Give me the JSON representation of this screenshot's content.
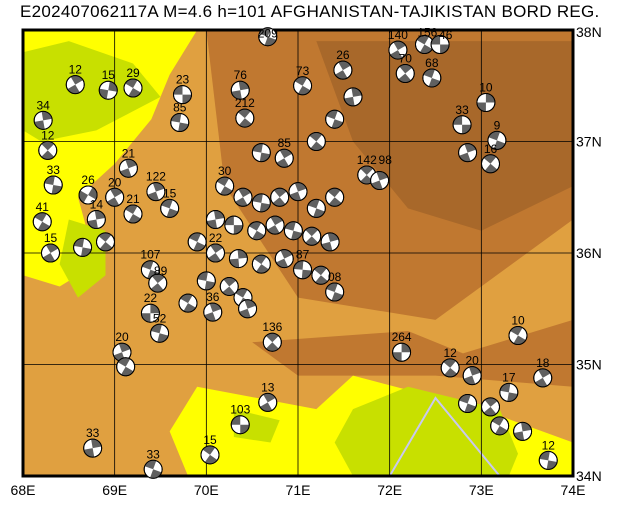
{
  "title": "E202407062117A M=4.6 h=101 AFGHANISTAN-TAJIKISTAN BORD REG.",
  "map": {
    "lon_range": [
      68,
      74
    ],
    "lat_range": [
      34,
      38
    ],
    "lon_ticks": [
      "68E",
      "69E",
      "70E",
      "71E",
      "72E",
      "73E",
      "74E"
    ],
    "lat_ticks": [
      "38N",
      "37N",
      "36N",
      "35N",
      "34N"
    ],
    "grid": true,
    "colors": {
      "lowland": "#ffff00",
      "plain": "#c8e000",
      "hills": "#e0a040",
      "mountain": "#c07830",
      "high": "#a8682a",
      "border": "#c8c8f0",
      "compression": "#606060"
    }
  },
  "events": [
    {
      "lon": 70.67,
      "lat": 37.94,
      "depth": "209",
      "strike": 20
    },
    {
      "lon": 68.57,
      "lat": 37.51,
      "depth": "12",
      "strike": 60
    },
    {
      "lon": 68.93,
      "lat": 37.46,
      "depth": "15",
      "strike": 100
    },
    {
      "lon": 69.2,
      "lat": 37.48,
      "depth": "29",
      "strike": 30
    },
    {
      "lon": 69.74,
      "lat": 37.42,
      "depth": "23",
      "strike": 0
    },
    {
      "lon": 68.22,
      "lat": 37.19,
      "depth": "34",
      "strike": 80
    },
    {
      "lon": 68.27,
      "lat": 36.92,
      "depth": "12",
      "strike": 45
    },
    {
      "lon": 68.33,
      "lat": 36.61,
      "depth": "33",
      "strike": 10
    },
    {
      "lon": 69.15,
      "lat": 36.76,
      "depth": "21",
      "strike": 70
    },
    {
      "lon": 68.71,
      "lat": 36.52,
      "depth": "26",
      "strike": 120
    },
    {
      "lon": 68.21,
      "lat": 36.28,
      "depth": "41",
      "strike": 30
    },
    {
      "lon": 68.3,
      "lat": 36.0,
      "depth": "15",
      "strike": 60
    },
    {
      "lon": 68.65,
      "lat": 36.05,
      "depth": "",
      "strike": 10
    },
    {
      "lon": 68.9,
      "lat": 36.1,
      "depth": "",
      "strike": 40
    },
    {
      "lon": 68.8,
      "lat": 36.3,
      "depth": "14",
      "strike": 80
    },
    {
      "lon": 69.39,
      "lat": 35.85,
      "depth": "107",
      "strike": 20
    },
    {
      "lon": 69.47,
      "lat": 35.73,
      "depth": "89",
      "strike": 50
    },
    {
      "lon": 69.39,
      "lat": 35.46,
      "depth": "22",
      "strike": 90
    },
    {
      "lon": 69.49,
      "lat": 35.28,
      "depth": "52",
      "strike": 15
    },
    {
      "lon": 70.72,
      "lat": 35.2,
      "depth": "136",
      "strike": 45
    },
    {
      "lon": 69.08,
      "lat": 35.11,
      "depth": "20",
      "strike": 70
    },
    {
      "lon": 69.12,
      "lat": 34.98,
      "depth": "",
      "strike": 30
    },
    {
      "lon": 70.67,
      "lat": 34.66,
      "depth": "13",
      "strike": 60
    },
    {
      "lon": 70.37,
      "lat": 34.46,
      "depth": "103",
      "strike": 0
    },
    {
      "lon": 70.04,
      "lat": 34.19,
      "depth": "15",
      "strike": 35
    },
    {
      "lon": 68.76,
      "lat": 34.25,
      "depth": "33",
      "strike": 80
    },
    {
      "lon": 69.42,
      "lat": 34.06,
      "depth": "33",
      "strike": 20
    },
    {
      "lon": 72.13,
      "lat": 35.11,
      "depth": "264",
      "strike": 90
    },
    {
      "lon": 72.66,
      "lat": 34.97,
      "depth": "12",
      "strike": 40
    },
    {
      "lon": 73.4,
      "lat": 35.26,
      "depth": "10",
      "strike": 30
    },
    {
      "lon": 73.67,
      "lat": 34.88,
      "depth": "18",
      "strike": 60
    },
    {
      "lon": 73.73,
      "lat": 34.14,
      "depth": "12",
      "strike": 10
    },
    {
      "lon": 72.9,
      "lat": 34.9,
      "depth": "20",
      "strike": 70
    },
    {
      "lon": 72.85,
      "lat": 34.65,
      "depth": "",
      "strike": 20
    },
    {
      "lon": 73.1,
      "lat": 34.62,
      "depth": "",
      "strike": 50
    },
    {
      "lon": 73.3,
      "lat": 34.75,
      "depth": "17",
      "strike": 10
    },
    {
      "lon": 73.45,
      "lat": 34.4,
      "depth": "",
      "strike": 80
    },
    {
      "lon": 73.2,
      "lat": 34.45,
      "depth": "",
      "strike": 30
    },
    {
      "lon": 72.79,
      "lat": 37.15,
      "depth": "33",
      "strike": 0
    },
    {
      "lon": 73.05,
      "lat": 37.35,
      "depth": "10",
      "strike": 90
    },
    {
      "lon": 73.17,
      "lat": 37.01,
      "depth": "9",
      "strike": 20
    },
    {
      "lon": 72.85,
      "lat": 36.9,
      "depth": "",
      "strike": 70
    },
    {
      "lon": 73.1,
      "lat": 36.8,
      "depth": "16",
      "strike": 40
    },
    {
      "lon": 71.49,
      "lat": 37.64,
      "depth": "26",
      "strike": 60
    },
    {
      "lon": 71.05,
      "lat": 37.5,
      "depth": "73",
      "strike": 30
    },
    {
      "lon": 71.75,
      "lat": 36.7,
      "depth": "142",
      "strike": 45
    },
    {
      "lon": 71.89,
      "lat": 36.65,
      "depth": "98",
      "strike": 70
    },
    {
      "lon": 71.4,
      "lat": 35.65,
      "depth": "08",
      "strike": 20
    },
    {
      "lon": 70.37,
      "lat": 37.46,
      "depth": "76",
      "strike": 80
    },
    {
      "lon": 69.71,
      "lat": 37.17,
      "depth": "85",
      "strike": 10
    },
    {
      "lon": 70.42,
      "lat": 37.21,
      "depth": "212",
      "strike": 40
    },
    {
      "lon": 72.09,
      "lat": 37.82,
      "depth": "140",
      "strike": 60
    },
    {
      "lon": 72.38,
      "lat": 37.87,
      "depth": "156",
      "strike": 30
    },
    {
      "lon": 72.55,
      "lat": 37.87,
      "depth": "46",
      "strike": 0
    },
    {
      "lon": 72.46,
      "lat": 37.57,
      "depth": "68",
      "strike": 20
    },
    {
      "lon": 72.17,
      "lat": 37.61,
      "depth": "70",
      "strike": 50
    },
    {
      "lon": 70.07,
      "lat": 35.47,
      "depth": "36",
      "strike": 70
    },
    {
      "lon": 70.4,
      "lat": 35.6,
      "depth": "",
      "strike": 30
    },
    {
      "lon": 70.6,
      "lat": 36.9,
      "depth": "",
      "strike": 10
    },
    {
      "lon": 70.85,
      "lat": 36.85,
      "depth": "85",
      "strike": 60
    },
    {
      "lon": 71.2,
      "lat": 37.0,
      "depth": "",
      "strike": 40
    },
    {
      "lon": 71.4,
      "lat": 37.2,
      "depth": "",
      "strike": 20
    },
    {
      "lon": 71.6,
      "lat": 37.4,
      "depth": "",
      "strike": 80
    },
    {
      "lon": 70.2,
      "lat": 36.6,
      "depth": "30",
      "strike": 30
    },
    {
      "lon": 70.4,
      "lat": 36.5,
      "depth": "",
      "strike": 60
    },
    {
      "lon": 70.6,
      "lat": 36.45,
      "depth": "",
      "strike": 10
    },
    {
      "lon": 70.8,
      "lat": 36.5,
      "depth": "",
      "strike": 50
    },
    {
      "lon": 71.0,
      "lat": 36.55,
      "depth": "",
      "strike": 70
    },
    {
      "lon": 71.2,
      "lat": 36.4,
      "depth": "",
      "strike": 20
    },
    {
      "lon": 71.4,
      "lat": 36.5,
      "depth": "",
      "strike": 40
    },
    {
      "lon": 70.1,
      "lat": 36.3,
      "depth": "",
      "strike": 80
    },
    {
      "lon": 70.3,
      "lat": 36.25,
      "depth": "",
      "strike": 0
    },
    {
      "lon": 70.55,
      "lat": 36.2,
      "depth": "",
      "strike": 30
    },
    {
      "lon": 70.75,
      "lat": 36.25,
      "depth": "",
      "strike": 60
    },
    {
      "lon": 70.95,
      "lat": 36.2,
      "depth": "",
      "strike": 15
    },
    {
      "lon": 71.15,
      "lat": 36.15,
      "depth": "",
      "strike": 45
    },
    {
      "lon": 71.35,
      "lat": 36.1,
      "depth": "",
      "strike": 75
    },
    {
      "lon": 69.9,
      "lat": 36.1,
      "depth": "",
      "strike": 25
    },
    {
      "lon": 70.1,
      "lat": 36.0,
      "depth": "22",
      "strike": 55
    },
    {
      "lon": 70.35,
      "lat": 35.95,
      "depth": "",
      "strike": 85
    },
    {
      "lon": 70.6,
      "lat": 35.9,
      "depth": "",
      "strike": 35
    },
    {
      "lon": 70.85,
      "lat": 35.95,
      "depth": "",
      "strike": 65
    },
    {
      "lon": 71.05,
      "lat": 35.85,
      "depth": "87",
      "strike": 5
    },
    {
      "lon": 71.25,
      "lat": 35.8,
      "depth": "",
      "strike": 40
    },
    {
      "lon": 69.6,
      "lat": 36.4,
      "depth": "15",
      "strike": 20
    },
    {
      "lon": 69.45,
      "lat": 36.55,
      "depth": "122",
      "strike": 70
    },
    {
      "lon": 69.2,
      "lat": 36.35,
      "depth": "21",
      "strike": 30
    },
    {
      "lon": 69.0,
      "lat": 36.5,
      "depth": "20",
      "strike": 60
    },
    {
      "lon": 70.0,
      "lat": 35.75,
      "depth": "",
      "strike": 10
    },
    {
      "lon": 70.25,
      "lat": 35.7,
      "depth": "",
      "strike": 50
    },
    {
      "lon": 69.8,
      "lat": 35.55,
      "depth": "",
      "strike": 30
    },
    {
      "lon": 70.45,
      "lat": 35.5,
      "depth": "",
      "strike": 70
    }
  ]
}
